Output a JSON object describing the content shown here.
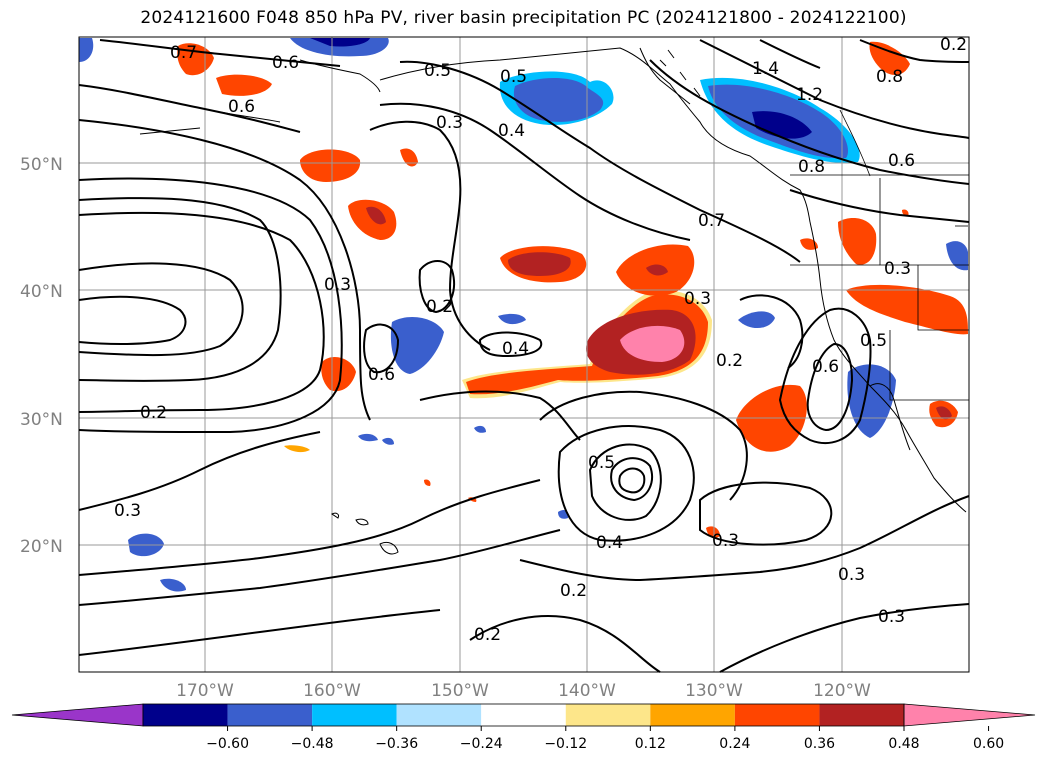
{
  "title": "2024121600 F048 850 hPa PV, river basin precipitation PC (2024121800 - 2024122100)",
  "lat_labels": [
    "50°N",
    "40°N",
    "30°N",
    "20°N"
  ],
  "lon_labels": [
    "170°W",
    "160°W",
    "150°W",
    "140°W",
    "130°W",
    "120°W"
  ],
  "colorbar": {
    "ticks": [
      "−0.60",
      "−0.48",
      "−0.36",
      "−0.24",
      "−0.12",
      "0.12",
      "0.24",
      "0.36",
      "0.48",
      "0.60"
    ],
    "colors": [
      "#9a35c9",
      "#00008b",
      "#3a5fcd",
      "#00bfff",
      "#b0e2ff",
      "#ffffff",
      "#fde68a",
      "#ffa500",
      "#ff4500",
      "#b22222",
      "#ff82ab"
    ]
  },
  "contour_labels": [
    "0.7",
    "0.6",
    "0.5",
    "0.5",
    "0.6",
    "0.3",
    "0.4",
    "1.4",
    "1.2",
    "0.8",
    "0.8",
    "0.6",
    "0.7",
    "0.3",
    "0.2",
    "0.3",
    "0.4",
    "0.6",
    "0.3",
    "0.2",
    "0.6",
    "0.5",
    "0.3",
    "0.2",
    "0.3",
    "0.5",
    "0.4",
    "0.3",
    "0.2",
    "0.3",
    "0.2",
    "0.2"
  ]
}
